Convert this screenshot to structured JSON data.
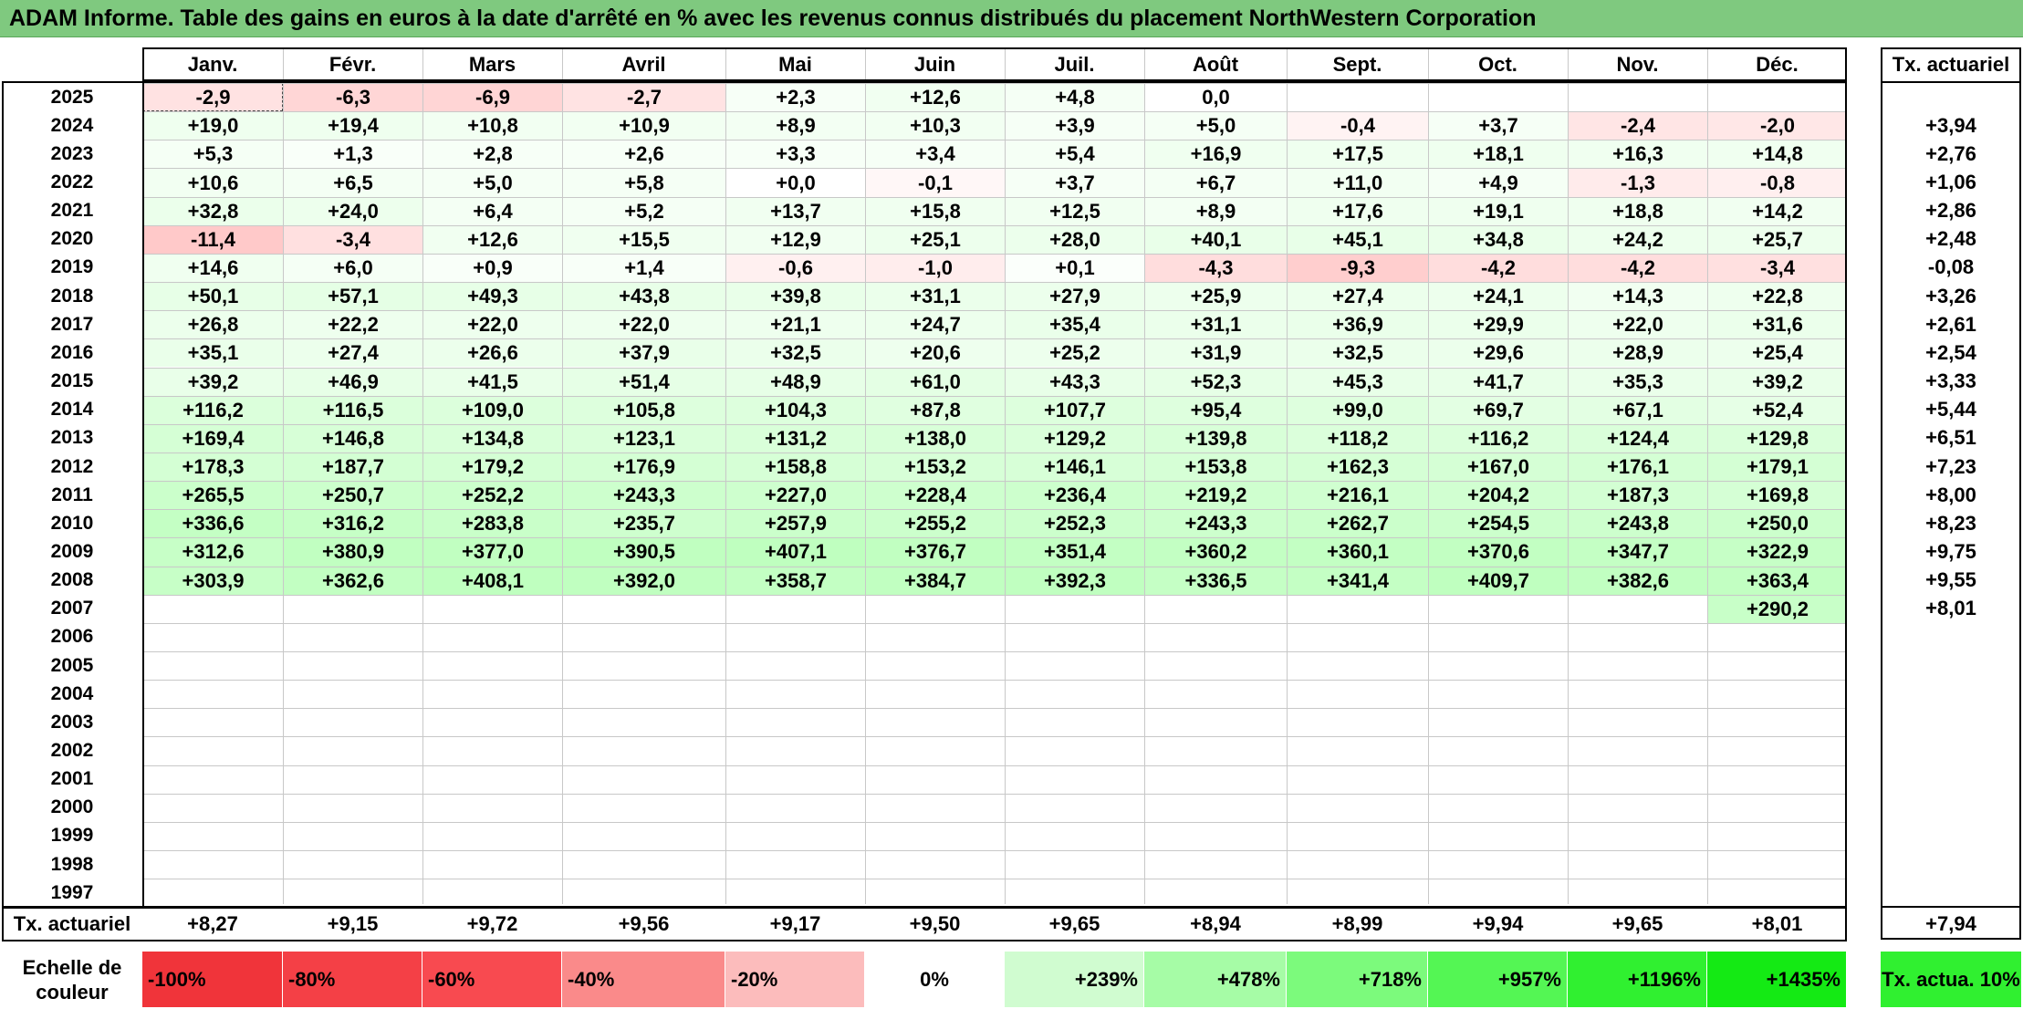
{
  "title": "ADAM Informe. Table des gains en euros à la date d'arrêté en % avec les revenus connus distribués du placement NorthWestern Corporation",
  "months": [
    "Janv.",
    "Févr.",
    "Mars",
    "Avril",
    "Mai",
    "Juin",
    "Juil.",
    "Août",
    "Sept.",
    "Oct.",
    "Nov.",
    "Déc."
  ],
  "rate_header": "Tx. actuariel",
  "rows": [
    {
      "year": "2025",
      "values": [
        "-2,9",
        "-6,3",
        "-6,9",
        "-2,7",
        "+2,3",
        "+12,6",
        "+4,8",
        "0,0",
        "",
        "",
        "",
        ""
      ],
      "rate": ""
    },
    {
      "year": "2024",
      "values": [
        "+19,0",
        "+19,4",
        "+10,8",
        "+10,9",
        "+8,9",
        "+10,3",
        "+3,9",
        "+5,0",
        "-0,4",
        "+3,7",
        "-2,4",
        "-2,0"
      ],
      "rate": "+3,94"
    },
    {
      "year": "2023",
      "values": [
        "+5,3",
        "+1,3",
        "+2,8",
        "+2,6",
        "+3,3",
        "+3,4",
        "+5,4",
        "+16,9",
        "+17,5",
        "+18,1",
        "+16,3",
        "+14,8"
      ],
      "rate": "+2,76"
    },
    {
      "year": "2022",
      "values": [
        "+10,6",
        "+6,5",
        "+5,0",
        "+5,8",
        "+0,0",
        "-0,1",
        "+3,7",
        "+6,7",
        "+11,0",
        "+4,9",
        "-1,3",
        "-0,8"
      ],
      "rate": "+1,06"
    },
    {
      "year": "2021",
      "values": [
        "+32,8",
        "+24,0",
        "+6,4",
        "+5,2",
        "+13,7",
        "+15,8",
        "+12,5",
        "+8,9",
        "+17,6",
        "+19,1",
        "+18,8",
        "+14,2"
      ],
      "rate": "+2,86"
    },
    {
      "year": "2020",
      "values": [
        "-11,4",
        "-3,4",
        "+12,6",
        "+15,5",
        "+12,9",
        "+25,1",
        "+28,0",
        "+40,1",
        "+45,1",
        "+34,8",
        "+24,2",
        "+25,7"
      ],
      "rate": "+2,48"
    },
    {
      "year": "2019",
      "values": [
        "+14,6",
        "+6,0",
        "+0,9",
        "+1,4",
        "-0,6",
        "-1,0",
        "+0,1",
        "-4,3",
        "-9,3",
        "-4,2",
        "-4,2",
        "-3,4"
      ],
      "rate": "-0,08"
    },
    {
      "year": "2018",
      "values": [
        "+50,1",
        "+57,1",
        "+49,3",
        "+43,8",
        "+39,8",
        "+31,1",
        "+27,9",
        "+25,9",
        "+27,4",
        "+24,1",
        "+14,3",
        "+22,8"
      ],
      "rate": "+3,26"
    },
    {
      "year": "2017",
      "values": [
        "+26,8",
        "+22,2",
        "+22,0",
        "+22,0",
        "+21,1",
        "+24,7",
        "+35,4",
        "+31,1",
        "+36,9",
        "+29,9",
        "+22,0",
        "+31,6"
      ],
      "rate": "+2,61"
    },
    {
      "year": "2016",
      "values": [
        "+35,1",
        "+27,4",
        "+26,6",
        "+37,9",
        "+32,5",
        "+20,6",
        "+25,2",
        "+31,9",
        "+32,5",
        "+29,6",
        "+28,9",
        "+25,4"
      ],
      "rate": "+2,54"
    },
    {
      "year": "2015",
      "values": [
        "+39,2",
        "+46,9",
        "+41,5",
        "+51,4",
        "+48,9",
        "+61,0",
        "+43,3",
        "+52,3",
        "+45,3",
        "+41,7",
        "+35,3",
        "+39,2"
      ],
      "rate": "+3,33"
    },
    {
      "year": "2014",
      "values": [
        "+116,2",
        "+116,5",
        "+109,0",
        "+105,8",
        "+104,3",
        "+87,8",
        "+107,7",
        "+95,4",
        "+99,0",
        "+69,7",
        "+67,1",
        "+52,4"
      ],
      "rate": "+5,44"
    },
    {
      "year": "2013",
      "values": [
        "+169,4",
        "+146,8",
        "+134,8",
        "+123,1",
        "+131,2",
        "+138,0",
        "+129,2",
        "+139,8",
        "+118,2",
        "+116,2",
        "+124,4",
        "+129,8"
      ],
      "rate": "+6,51"
    },
    {
      "year": "2012",
      "values": [
        "+178,3",
        "+187,7",
        "+179,2",
        "+176,9",
        "+158,8",
        "+153,2",
        "+146,1",
        "+153,8",
        "+162,3",
        "+167,0",
        "+176,1",
        "+179,1"
      ],
      "rate": "+7,23"
    },
    {
      "year": "2011",
      "values": [
        "+265,5",
        "+250,7",
        "+252,2",
        "+243,3",
        "+227,0",
        "+228,4",
        "+236,4",
        "+219,2",
        "+216,1",
        "+204,2",
        "+187,3",
        "+169,8"
      ],
      "rate": "+8,00"
    },
    {
      "year": "2010",
      "values": [
        "+336,6",
        "+316,2",
        "+283,8",
        "+235,7",
        "+257,9",
        "+255,2",
        "+252,3",
        "+243,3",
        "+262,7",
        "+254,5",
        "+243,8",
        "+250,0"
      ],
      "rate": "+8,23"
    },
    {
      "year": "2009",
      "values": [
        "+312,6",
        "+380,9",
        "+377,0",
        "+390,5",
        "+407,1",
        "+376,7",
        "+351,4",
        "+360,2",
        "+360,1",
        "+370,6",
        "+347,7",
        "+322,9"
      ],
      "rate": "+9,75"
    },
    {
      "year": "2008",
      "values": [
        "+303,9",
        "+362,6",
        "+408,1",
        "+392,0",
        "+358,7",
        "+384,7",
        "+392,3",
        "+336,5",
        "+341,4",
        "+409,7",
        "+382,6",
        "+363,4"
      ],
      "rate": "+9,55"
    },
    {
      "year": "2007",
      "values": [
        "",
        "",
        "",
        "",
        "",
        "",
        "",
        "",
        "",
        "",
        "",
        "+290,2"
      ],
      "rate": "+8,01"
    },
    {
      "year": "2006",
      "values": [
        "",
        "",
        "",
        "",
        "",
        "",
        "",
        "",
        "",
        "",
        "",
        ""
      ],
      "rate": ""
    },
    {
      "year": "2005",
      "values": [
        "",
        "",
        "",
        "",
        "",
        "",
        "",
        "",
        "",
        "",
        "",
        ""
      ],
      "rate": ""
    },
    {
      "year": "2004",
      "values": [
        "",
        "",
        "",
        "",
        "",
        "",
        "",
        "",
        "",
        "",
        "",
        ""
      ],
      "rate": ""
    },
    {
      "year": "2003",
      "values": [
        "",
        "",
        "",
        "",
        "",
        "",
        "",
        "",
        "",
        "",
        "",
        ""
      ],
      "rate": ""
    },
    {
      "year": "2002",
      "values": [
        "",
        "",
        "",
        "",
        "",
        "",
        "",
        "",
        "",
        "",
        "",
        ""
      ],
      "rate": ""
    },
    {
      "year": "2001",
      "values": [
        "",
        "",
        "",
        "",
        "",
        "",
        "",
        "",
        "",
        "",
        "",
        ""
      ],
      "rate": ""
    },
    {
      "year": "2000",
      "values": [
        "",
        "",
        "",
        "",
        "",
        "",
        "",
        "",
        "",
        "",
        "",
        ""
      ],
      "rate": ""
    },
    {
      "year": "1999",
      "values": [
        "",
        "",
        "",
        "",
        "",
        "",
        "",
        "",
        "",
        "",
        "",
        ""
      ],
      "rate": ""
    },
    {
      "year": "1998",
      "values": [
        "",
        "",
        "",
        "",
        "",
        "",
        "",
        "",
        "",
        "",
        "",
        ""
      ],
      "rate": ""
    },
    {
      "year": "1997",
      "values": [
        "",
        "",
        "",
        "",
        "",
        "",
        "",
        "",
        "",
        "",
        "",
        ""
      ],
      "rate": ""
    }
  ],
  "footer": {
    "label": "Tx. actuariel",
    "values": [
      "+8,27",
      "+9,15",
      "+9,72",
      "+9,56",
      "+9,17",
      "+9,50",
      "+9,65",
      "+8,94",
      "+8,99",
      "+9,94",
      "+9,65",
      "+8,01"
    ],
    "rate": "+7,94"
  },
  "legend": {
    "label": "Echelle de couleur",
    "items": [
      {
        "text": "-100%",
        "color": "#f0343a",
        "align": "left"
      },
      {
        "text": "-80%",
        "color": "#f44046",
        "align": "left"
      },
      {
        "text": "-60%",
        "color": "#f84a50",
        "align": "left"
      },
      {
        "text": "-40%",
        "color": "#fa8a8a",
        "align": "left"
      },
      {
        "text": "-20%",
        "color": "#fcbcbc",
        "align": "left"
      },
      {
        "text": "0%",
        "color": "#ffffff",
        "align": "center"
      },
      {
        "text": "+239%",
        "color": "#d0fcd0",
        "align": "right"
      },
      {
        "text": "+478%",
        "color": "#a6fca6",
        "align": "right"
      },
      {
        "text": "+718%",
        "color": "#7cfa7c",
        "align": "right"
      },
      {
        "text": "+957%",
        "color": "#54f654",
        "align": "right"
      },
      {
        "text": "+1196%",
        "color": "#30f030",
        "align": "right"
      },
      {
        "text": "+1435%",
        "color": "#14ea14",
        "align": "right"
      }
    ],
    "rate_swatch": {
      "text": "Tx. actua. 10%",
      "color": "#30f030"
    }
  },
  "colors": {
    "title_bg": "#7fc97f",
    "negative_shade": "#ffd8d8",
    "positive_shade": "#c8f8c8"
  }
}
